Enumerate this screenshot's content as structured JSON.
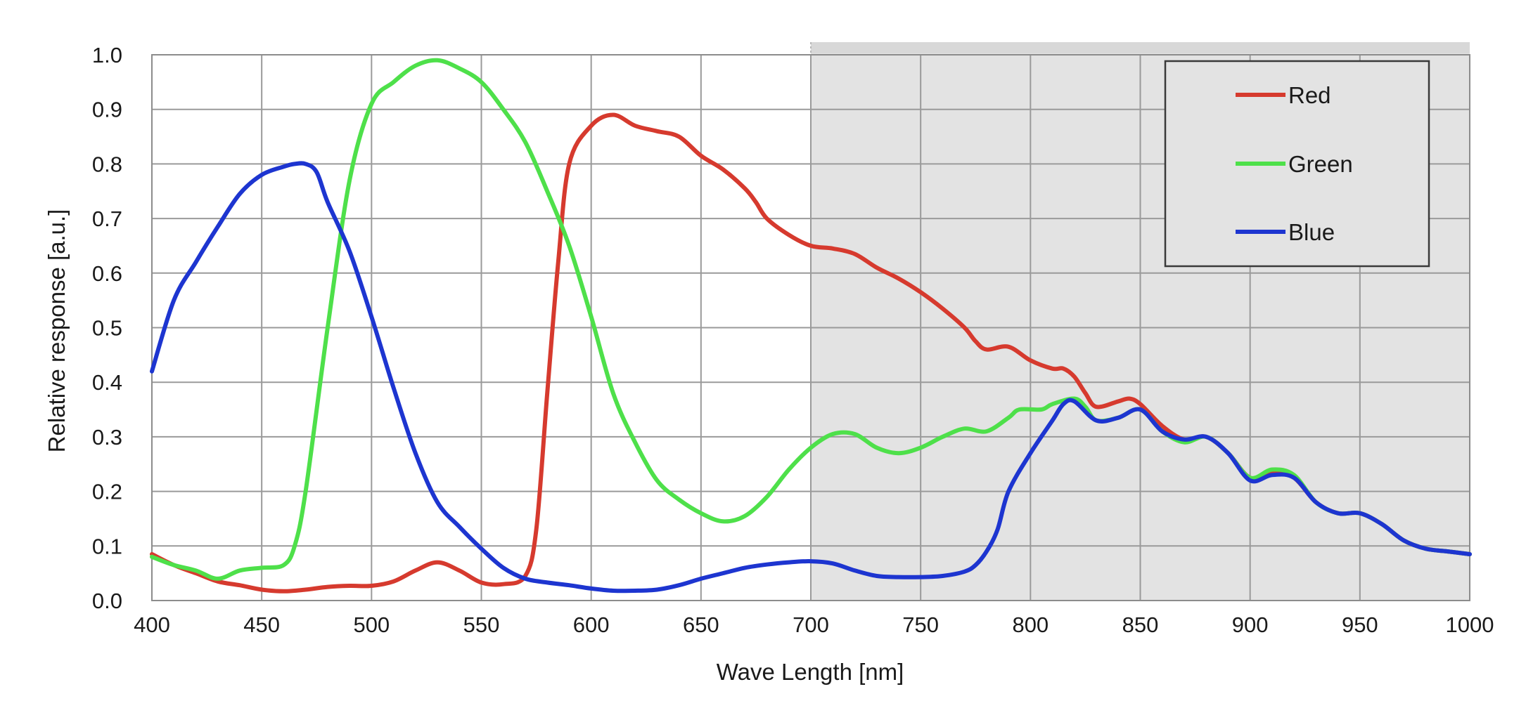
{
  "chart_data": {
    "type": "line",
    "title": "",
    "xlabel": "Wave Length [nm]",
    "ylabel": "Relative response [a.u.]",
    "xlim": [
      400,
      1000
    ],
    "ylim": [
      0.0,
      1.0
    ],
    "x_ticks": [
      "400",
      "450",
      "500",
      "550",
      "600",
      "650",
      "700",
      "750",
      "800",
      "850",
      "900",
      "950",
      "1000"
    ],
    "y_ticks": [
      "0.0",
      "0.1",
      "0.2",
      "0.3",
      "0.4",
      "0.5",
      "0.6",
      "0.7",
      "0.8",
      "0.9",
      "1.0"
    ],
    "grid": true,
    "shaded_region": {
      "x_start": 700,
      "x_end": 1000,
      "color": "#e3e3e3"
    },
    "legend": {
      "position": "top-right",
      "entries": [
        "Red",
        "Green",
        "Blue"
      ]
    },
    "series": [
      {
        "name": "Red",
        "color": "#d63a2e",
        "points": [
          [
            400,
            0.085
          ],
          [
            410,
            0.065
          ],
          [
            420,
            0.05
          ],
          [
            430,
            0.035
          ],
          [
            440,
            0.028
          ],
          [
            450,
            0.02
          ],
          [
            460,
            0.017
          ],
          [
            470,
            0.02
          ],
          [
            480,
            0.025
          ],
          [
            490,
            0.027
          ],
          [
            500,
            0.027
          ],
          [
            510,
            0.035
          ],
          [
            520,
            0.055
          ],
          [
            530,
            0.07
          ],
          [
            540,
            0.055
          ],
          [
            550,
            0.033
          ],
          [
            560,
            0.03
          ],
          [
            570,
            0.045
          ],
          [
            575,
            0.13
          ],
          [
            580,
            0.38
          ],
          [
            585,
            0.62
          ],
          [
            590,
            0.8
          ],
          [
            600,
            0.87
          ],
          [
            610,
            0.89
          ],
          [
            620,
            0.87
          ],
          [
            630,
            0.86
          ],
          [
            640,
            0.85
          ],
          [
            650,
            0.815
          ],
          [
            660,
            0.79
          ],
          [
            670,
            0.755
          ],
          [
            675,
            0.73
          ],
          [
            680,
            0.7
          ],
          [
            690,
            0.67
          ],
          [
            700,
            0.65
          ],
          [
            710,
            0.645
          ],
          [
            720,
            0.635
          ],
          [
            730,
            0.61
          ],
          [
            740,
            0.59
          ],
          [
            750,
            0.565
          ],
          [
            760,
            0.535
          ],
          [
            770,
            0.5
          ],
          [
            775,
            0.475
          ],
          [
            780,
            0.46
          ],
          [
            790,
            0.465
          ],
          [
            800,
            0.44
          ],
          [
            810,
            0.425
          ],
          [
            815,
            0.425
          ],
          [
            820,
            0.41
          ],
          [
            825,
            0.38
          ],
          [
            830,
            0.355
          ],
          [
            840,
            0.365
          ],
          [
            845,
            0.37
          ],
          [
            850,
            0.36
          ],
          [
            860,
            0.32
          ],
          [
            870,
            0.295
          ],
          [
            880,
            0.3
          ],
          [
            890,
            0.27
          ],
          [
            900,
            0.225
          ],
          [
            910,
            0.235
          ],
          [
            920,
            0.225
          ],
          [
            930,
            0.18
          ],
          [
            940,
            0.16
          ],
          [
            950,
            0.16
          ],
          [
            960,
            0.14
          ],
          [
            970,
            0.11
          ],
          [
            980,
            0.095
          ],
          [
            990,
            0.09
          ],
          [
            1000,
            0.085
          ]
        ]
      },
      {
        "name": "Green",
        "color": "#4ee04a",
        "points": [
          [
            400,
            0.08
          ],
          [
            410,
            0.065
          ],
          [
            420,
            0.055
          ],
          [
            430,
            0.04
          ],
          [
            440,
            0.055
          ],
          [
            450,
            0.06
          ],
          [
            460,
            0.065
          ],
          [
            465,
            0.1
          ],
          [
            470,
            0.2
          ],
          [
            480,
            0.5
          ],
          [
            490,
            0.77
          ],
          [
            500,
            0.91
          ],
          [
            510,
            0.95
          ],
          [
            520,
            0.98
          ],
          [
            530,
            0.99
          ],
          [
            540,
            0.975
          ],
          [
            550,
            0.95
          ],
          [
            560,
            0.9
          ],
          [
            570,
            0.84
          ],
          [
            580,
            0.75
          ],
          [
            590,
            0.65
          ],
          [
            600,
            0.52
          ],
          [
            610,
            0.38
          ],
          [
            620,
            0.29
          ],
          [
            630,
            0.22
          ],
          [
            640,
            0.185
          ],
          [
            650,
            0.16
          ],
          [
            660,
            0.145
          ],
          [
            670,
            0.155
          ],
          [
            680,
            0.19
          ],
          [
            690,
            0.24
          ],
          [
            700,
            0.28
          ],
          [
            710,
            0.305
          ],
          [
            720,
            0.305
          ],
          [
            730,
            0.28
          ],
          [
            740,
            0.27
          ],
          [
            750,
            0.28
          ],
          [
            760,
            0.3
          ],
          [
            770,
            0.315
          ],
          [
            780,
            0.31
          ],
          [
            790,
            0.335
          ],
          [
            795,
            0.35
          ],
          [
            805,
            0.35
          ],
          [
            810,
            0.36
          ],
          [
            820,
            0.37
          ],
          [
            825,
            0.355
          ],
          [
            830,
            0.33
          ],
          [
            840,
            0.335
          ],
          [
            850,
            0.35
          ],
          [
            860,
            0.31
          ],
          [
            870,
            0.29
          ],
          [
            880,
            0.3
          ],
          [
            890,
            0.27
          ],
          [
            900,
            0.225
          ],
          [
            910,
            0.24
          ],
          [
            920,
            0.23
          ],
          [
            930,
            0.18
          ],
          [
            940,
            0.16
          ],
          [
            950,
            0.16
          ],
          [
            960,
            0.14
          ],
          [
            970,
            0.11
          ],
          [
            980,
            0.095
          ],
          [
            990,
            0.09
          ],
          [
            1000,
            0.085
          ]
        ]
      },
      {
        "name": "Blue",
        "color": "#1d35d0",
        "points": [
          [
            400,
            0.42
          ],
          [
            410,
            0.55
          ],
          [
            420,
            0.62
          ],
          [
            430,
            0.685
          ],
          [
            440,
            0.745
          ],
          [
            450,
            0.78
          ],
          [
            460,
            0.795
          ],
          [
            465,
            0.8
          ],
          [
            470,
            0.8
          ],
          [
            475,
            0.785
          ],
          [
            480,
            0.73
          ],
          [
            490,
            0.64
          ],
          [
            500,
            0.52
          ],
          [
            510,
            0.39
          ],
          [
            520,
            0.27
          ],
          [
            530,
            0.18
          ],
          [
            540,
            0.135
          ],
          [
            550,
            0.095
          ],
          [
            560,
            0.06
          ],
          [
            570,
            0.04
          ],
          [
            580,
            0.033
          ],
          [
            590,
            0.028
          ],
          [
            600,
            0.022
          ],
          [
            610,
            0.018
          ],
          [
            620,
            0.018
          ],
          [
            630,
            0.02
          ],
          [
            640,
            0.028
          ],
          [
            650,
            0.04
          ],
          [
            660,
            0.05
          ],
          [
            670,
            0.06
          ],
          [
            680,
            0.066
          ],
          [
            690,
            0.07
          ],
          [
            700,
            0.072
          ],
          [
            710,
            0.068
          ],
          [
            720,
            0.055
          ],
          [
            730,
            0.045
          ],
          [
            740,
            0.043
          ],
          [
            750,
            0.043
          ],
          [
            760,
            0.045
          ],
          [
            770,
            0.053
          ],
          [
            775,
            0.065
          ],
          [
            780,
            0.09
          ],
          [
            785,
            0.13
          ],
          [
            790,
            0.2
          ],
          [
            800,
            0.27
          ],
          [
            810,
            0.33
          ],
          [
            815,
            0.36
          ],
          [
            820,
            0.365
          ],
          [
            830,
            0.33
          ],
          [
            840,
            0.335
          ],
          [
            850,
            0.35
          ],
          [
            860,
            0.31
          ],
          [
            870,
            0.295
          ],
          [
            880,
            0.3
          ],
          [
            890,
            0.27
          ],
          [
            900,
            0.22
          ],
          [
            910,
            0.23
          ],
          [
            920,
            0.225
          ],
          [
            930,
            0.18
          ],
          [
            940,
            0.16
          ],
          [
            950,
            0.16
          ],
          [
            960,
            0.14
          ],
          [
            970,
            0.11
          ],
          [
            980,
            0.095
          ],
          [
            990,
            0.09
          ],
          [
            1000,
            0.085
          ]
        ]
      }
    ]
  }
}
